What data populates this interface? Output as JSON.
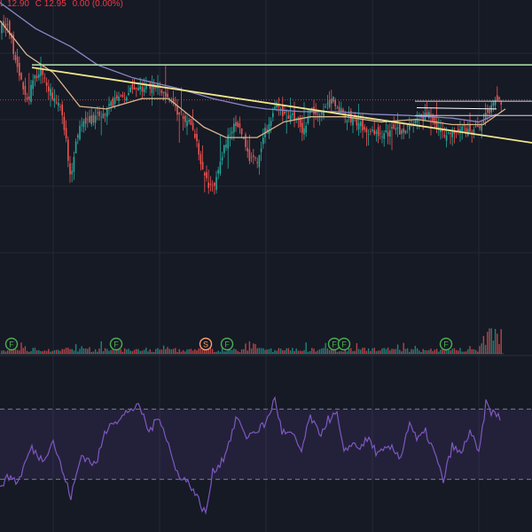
{
  "legend": {
    "low": "L 12.90",
    "close": "C 12.95",
    "change": "0.00 (0.00%)"
  },
  "colors": {
    "background": "#161a25",
    "grid": "#232838",
    "up": "#26a69a",
    "down": "#ef5350",
    "ma_fast": "#d8b48a",
    "ma_slow": "#8a88c8",
    "trendline": "#f0e68c",
    "resistance": "#a5d6a7",
    "level": "#d9d9d9",
    "rsi_line": "#7e57c2",
    "rsi_band": "rgba(126,87,194,0.13)",
    "event_f": "#4caf50",
    "event_s": "#ff9e6b"
  },
  "chart_data": {
    "type": "candlestick",
    "price_range": [
      2.4,
      14.7
    ],
    "price_line": 10.85,
    "ma_fast": [
      [
        0,
        13.9
      ],
      [
        30,
        12.6
      ],
      [
        60,
        11.9
      ],
      [
        90,
        10.6
      ],
      [
        120,
        10.5
      ],
      [
        160,
        10.9
      ],
      [
        190,
        10.9
      ],
      [
        230,
        9.8
      ],
      [
        255,
        9.4
      ],
      [
        290,
        9.4
      ],
      [
        320,
        10.0
      ],
      [
        350,
        10.2
      ],
      [
        390,
        10.2
      ],
      [
        430,
        10.0
      ],
      [
        470,
        10.1
      ],
      [
        510,
        9.9
      ],
      [
        545,
        9.9
      ],
      [
        570,
        10.5
      ]
    ],
    "ma_slow": [
      [
        0,
        14.6
      ],
      [
        40,
        13.6
      ],
      [
        80,
        12.9
      ],
      [
        110,
        12.2
      ],
      [
        150,
        11.7
      ],
      [
        200,
        11.3
      ],
      [
        240,
        10.9
      ],
      [
        280,
        10.6
      ],
      [
        300,
        10.5
      ],
      [
        340,
        10.4
      ],
      [
        380,
        10.4
      ],
      [
        420,
        10.3
      ],
      [
        460,
        10.25
      ],
      [
        510,
        10.15
      ],
      [
        540,
        10.0
      ],
      [
        560,
        10.3
      ]
    ],
    "trendline": {
      "from": [
        36,
        12.1
      ],
      "to": [
        600,
        9.2
      ]
    },
    "horizontal_lines": [
      {
        "name": "resistance-line",
        "price": 12.2,
        "x_start": 36
      },
      {
        "name": "level-upper",
        "price": 10.8,
        "x_start": 468
      },
      {
        "name": "level-lower",
        "price": 10.25,
        "x_start": 468
      }
    ],
    "segment": {
      "from": [
        470,
        10.55
      ],
      "to": [
        560,
        10.5
      ]
    },
    "events": [
      {
        "label": "F",
        "x": 13,
        "color": "event_f"
      },
      {
        "label": "F",
        "x": 131,
        "color": "event_f"
      },
      {
        "label": "S",
        "x": 232,
        "color": "event_s"
      },
      {
        "label": "F",
        "x": 256,
        "color": "event_f"
      },
      {
        "label": "F",
        "x": 377,
        "color": "event_f"
      },
      {
        "label": "F",
        "x": 388,
        "color": "event_f"
      },
      {
        "label": "F",
        "x": 503,
        "color": "event_f"
      }
    ],
    "rsi": {
      "range": [
        0,
        100
      ],
      "upper_band": 70,
      "lower_band": 30,
      "values": [
        [
          0,
          27
        ],
        [
          12,
          32
        ],
        [
          20,
          28
        ],
        [
          35,
          48
        ],
        [
          48,
          41
        ],
        [
          60,
          52
        ],
        [
          72,
          32
        ],
        [
          80,
          20
        ],
        [
          92,
          44
        ],
        [
          108,
          38
        ],
        [
          118,
          56
        ],
        [
          126,
          64
        ],
        [
          134,
          63
        ],
        [
          146,
          70
        ],
        [
          158,
          71
        ],
        [
          168,
          57
        ],
        [
          180,
          66
        ],
        [
          190,
          50
        ],
        [
          198,
          35
        ],
        [
          208,
          30
        ],
        [
          216,
          26
        ],
        [
          224,
          18
        ],
        [
          232,
          10
        ],
        [
          240,
          34
        ],
        [
          252,
          42
        ],
        [
          262,
          57
        ],
        [
          268,
          66
        ],
        [
          276,
          54
        ],
        [
          290,
          58
        ],
        [
          300,
          62
        ],
        [
          310,
          76
        ],
        [
          318,
          57
        ],
        [
          330,
          55
        ],
        [
          340,
          46
        ],
        [
          350,
          66
        ],
        [
          360,
          55
        ],
        [
          370,
          64
        ],
        [
          380,
          67
        ],
        [
          388,
          44
        ],
        [
          396,
          51
        ],
        [
          404,
          48
        ],
        [
          416,
          53
        ],
        [
          426,
          44
        ],
        [
          440,
          48
        ],
        [
          452,
          43
        ],
        [
          462,
          63
        ],
        [
          470,
          52
        ],
        [
          480,
          57
        ],
        [
          490,
          45
        ],
        [
          500,
          29
        ],
        [
          510,
          49
        ],
        [
          520,
          44
        ],
        [
          530,
          58
        ],
        [
          540,
          44
        ],
        [
          548,
          73
        ],
        [
          555,
          68
        ],
        [
          565,
          65
        ]
      ]
    }
  }
}
